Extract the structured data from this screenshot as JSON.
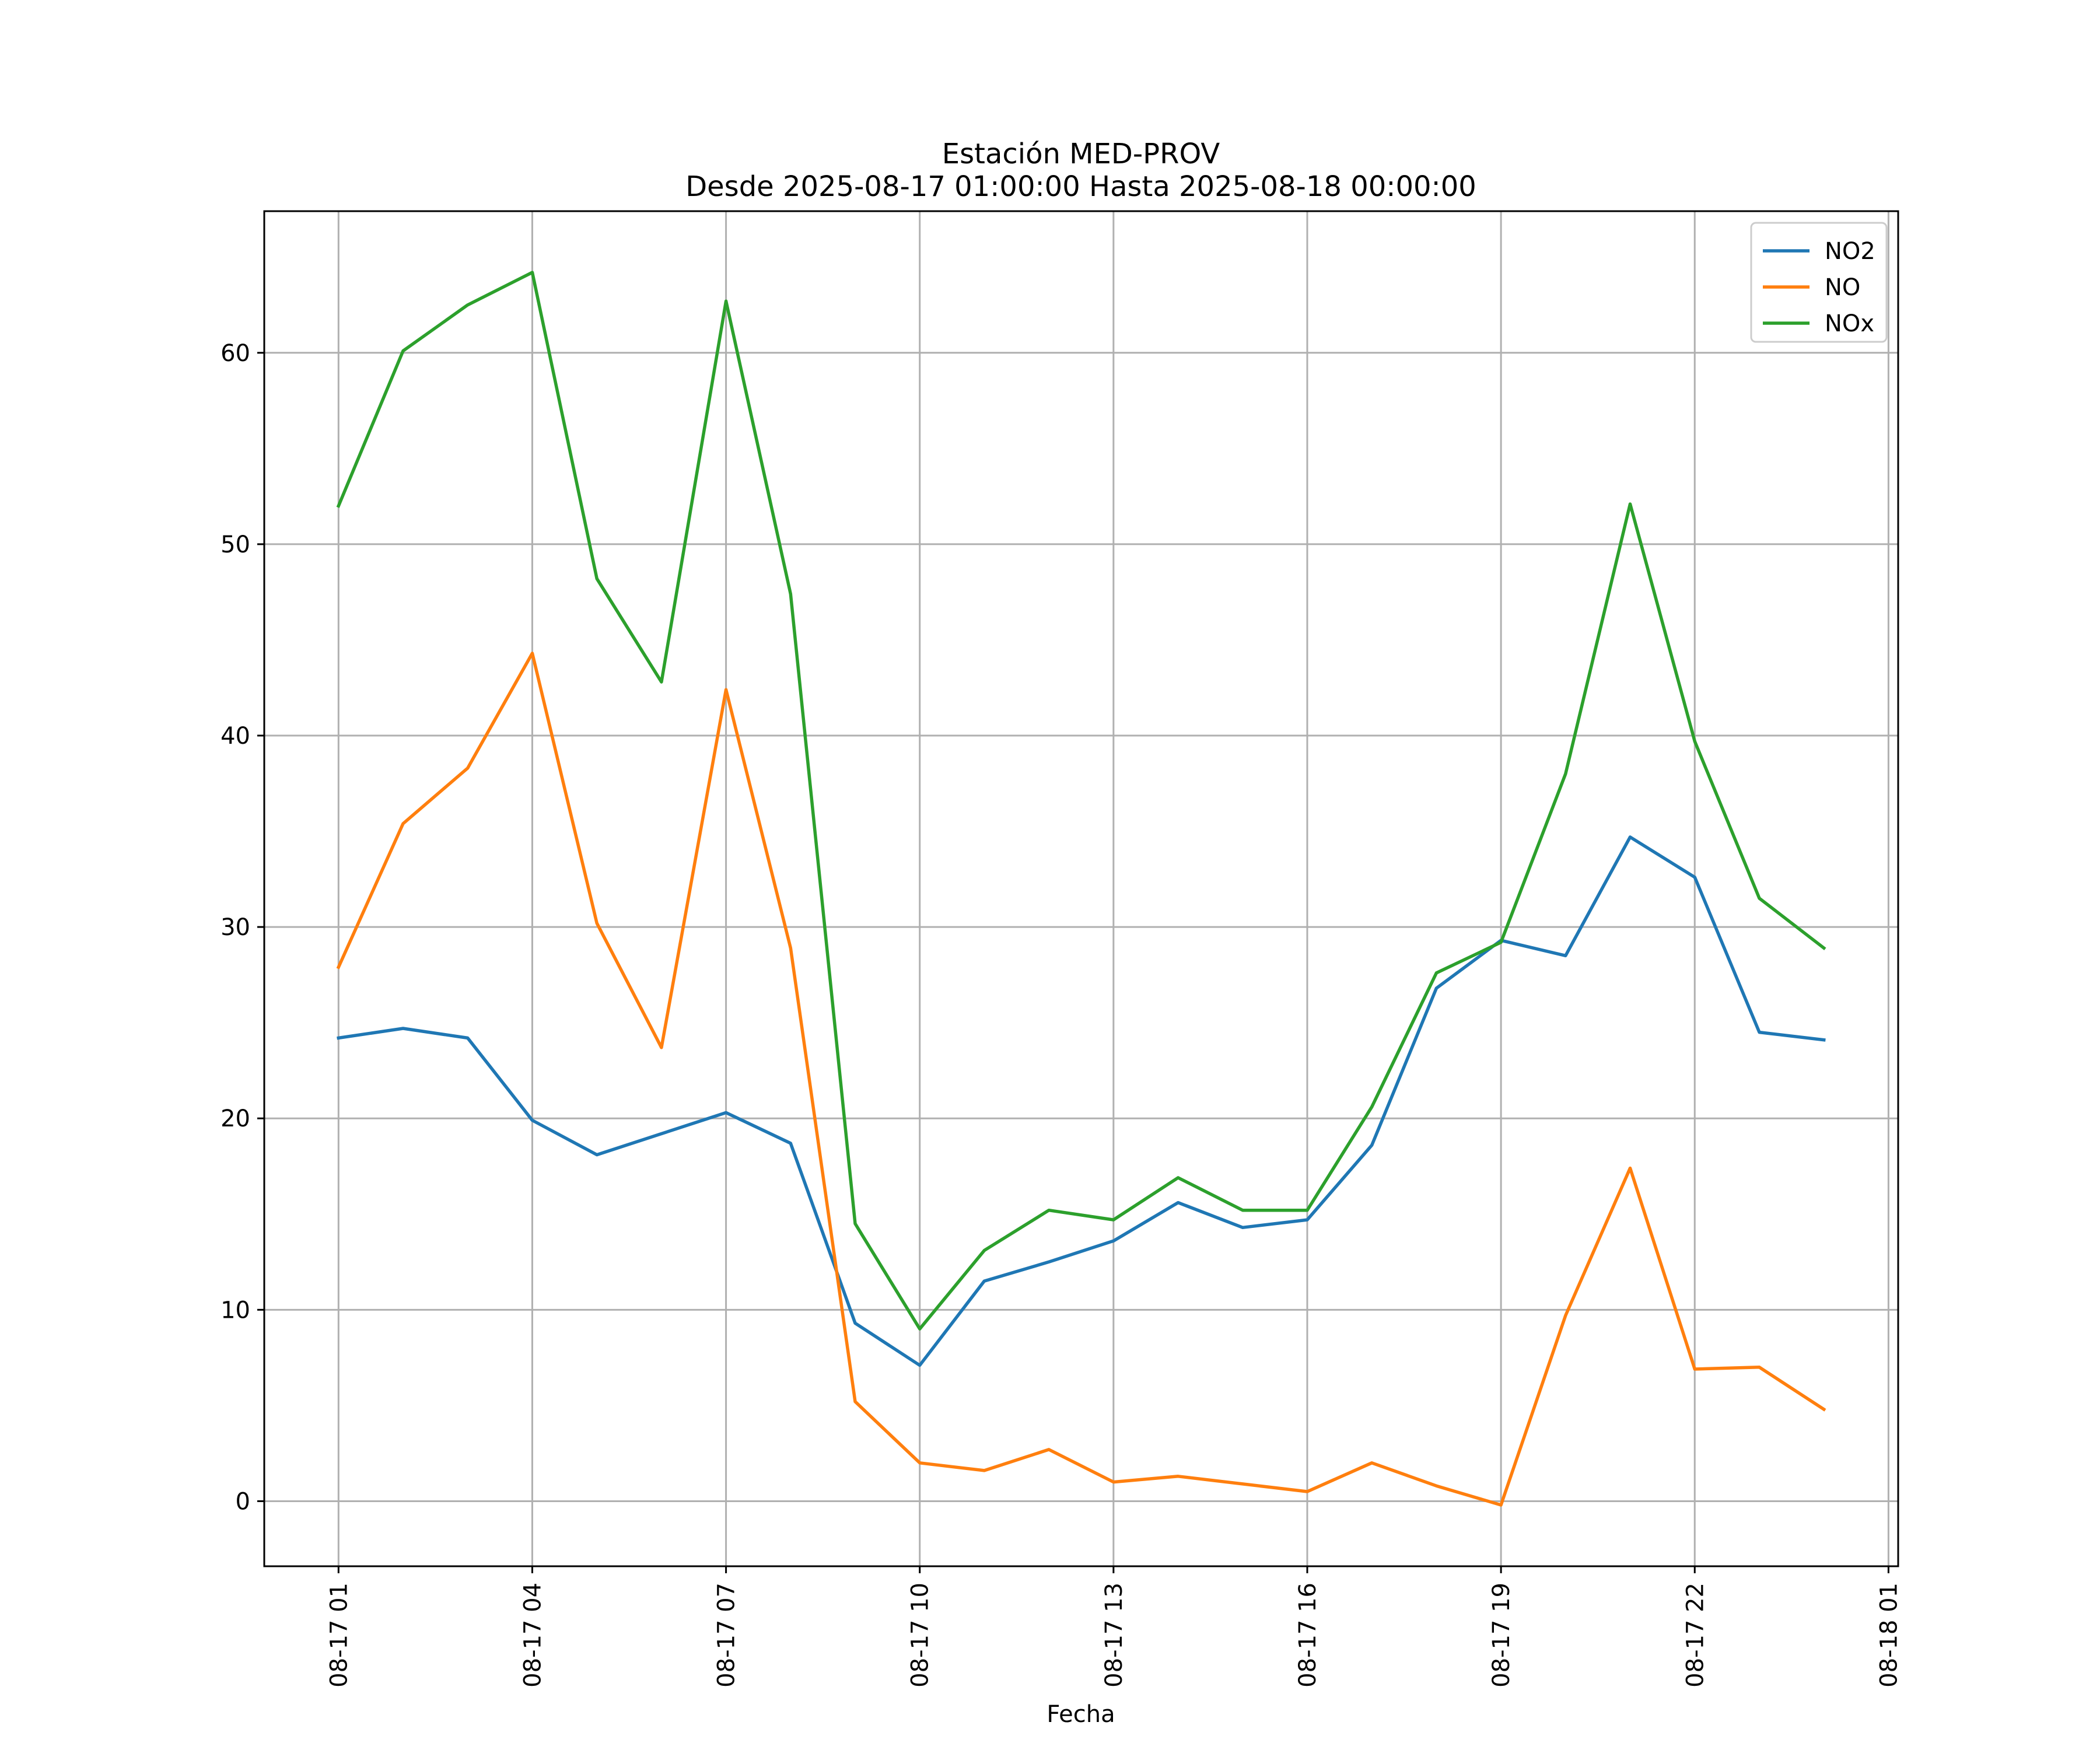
{
  "chart_data": {
    "type": "line",
    "title": "Estación MED-PROV",
    "subtitle": "Desde 2025-08-17 01:00:00 Hasta 2025-08-18 00:00:00",
    "xlabel": "Fecha",
    "ylabel": "",
    "x": [
      "2025-08-17 01:00",
      "2025-08-17 02:00",
      "2025-08-17 03:00",
      "2025-08-17 04:00",
      "2025-08-17 05:00",
      "2025-08-17 06:00",
      "2025-08-17 07:00",
      "2025-08-17 08:00",
      "2025-08-17 09:00",
      "2025-08-17 10:00",
      "2025-08-17 11:00",
      "2025-08-17 12:00",
      "2025-08-17 13:00",
      "2025-08-17 14:00",
      "2025-08-17 15:00",
      "2025-08-17 16:00",
      "2025-08-17 17:00",
      "2025-08-17 18:00",
      "2025-08-17 19:00",
      "2025-08-17 20:00",
      "2025-08-17 21:00",
      "2025-08-17 22:00",
      "2025-08-17 23:00",
      "2025-08-18 00:00"
    ],
    "series": [
      {
        "name": "NO2",
        "color": "#1f77b4",
        "values": [
          24.2,
          24.7,
          24.2,
          19.9,
          18.1,
          19.2,
          20.3,
          18.7,
          9.3,
          7.1,
          11.5,
          12.5,
          13.6,
          15.6,
          14.3,
          14.7,
          18.6,
          26.8,
          29.3,
          28.5,
          34.7,
          32.6,
          24.5,
          24.1
        ]
      },
      {
        "name": "NO",
        "color": "#ff7f0e",
        "values": [
          27.9,
          35.4,
          38.3,
          44.3,
          30.2,
          23.7,
          42.4,
          28.9,
          5.2,
          2.0,
          1.6,
          2.7,
          1.0,
          1.3,
          0.9,
          0.5,
          2.0,
          0.8,
          -0.2,
          9.7,
          17.4,
          6.9,
          7.0,
          4.8
        ]
      },
      {
        "name": "NOx",
        "color": "#2ca02c",
        "values": [
          52.0,
          60.1,
          62.5,
          64.2,
          48.2,
          42.8,
          62.7,
          47.4,
          14.5,
          9.0,
          13.1,
          15.2,
          14.7,
          16.9,
          15.2,
          15.2,
          20.6,
          27.6,
          29.2,
          38.0,
          52.1,
          39.7,
          31.5,
          28.9
        ]
      }
    ],
    "ylim": [
      -3.4,
      67.4
    ],
    "yticks": [
      0,
      10,
      20,
      30,
      40,
      50,
      60
    ],
    "xticks": [
      {
        "label": "08-17 01",
        "t": "2025-08-17 01:00"
      },
      {
        "label": "08-17 04",
        "t": "2025-08-17 04:00"
      },
      {
        "label": "08-17 07",
        "t": "2025-08-17 07:00"
      },
      {
        "label": "08-17 10",
        "t": "2025-08-17 10:00"
      },
      {
        "label": "08-17 13",
        "t": "2025-08-17 13:00"
      },
      {
        "label": "08-17 16",
        "t": "2025-08-17 16:00"
      },
      {
        "label": "08-17 19",
        "t": "2025-08-17 19:00"
      },
      {
        "label": "08-17 22",
        "t": "2025-08-17 22:00"
      },
      {
        "label": "08-18 01",
        "t": "2025-08-18 01:00"
      }
    ],
    "xlim": [
      "2025-08-16 23:51",
      "2025-08-18 01:09"
    ],
    "grid": true,
    "legend": "upper right"
  }
}
